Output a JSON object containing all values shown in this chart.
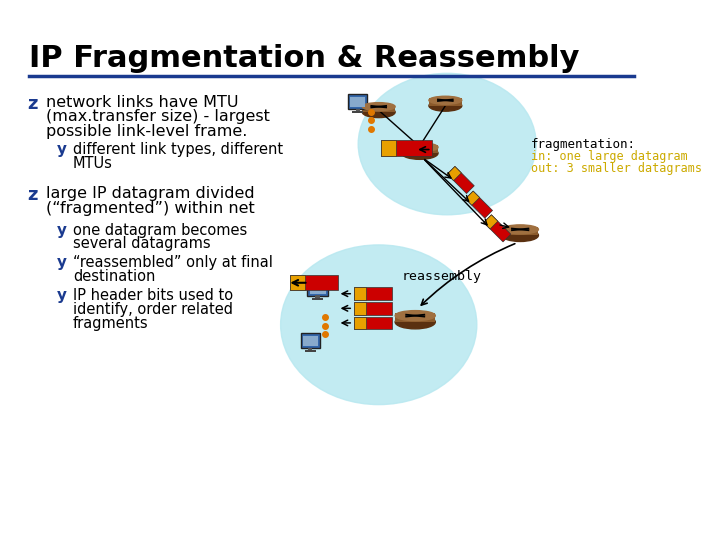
{
  "title": "IP Fragmentation & Reassembly",
  "title_fontsize": 22,
  "title_color": "#000000",
  "underline_color": "#1a3a8f",
  "bg_color": "#ffffff",
  "bullet_color": "#1a3a8f",
  "text_color": "#000000",
  "bullet1_line1": "network links have MTU",
  "bullet1_line2": "(max.transfer size) - largest",
  "bullet1_line3": "possible link-level frame.",
  "sub1_line1": "different link types, different",
  "sub1_line2": "MTUs",
  "bullet2_line1": "large IP datagram divided",
  "bullet2_line2": "(“fragmented”) within net",
  "sub2a_line1": "one datagram becomes",
  "sub2a_line2": "several datagrams",
  "sub2b_line1": "“reassembled” only at final",
  "sub2b_line2": "destination",
  "sub2c_line1": "IP header bits used to",
  "sub2c_line2": "identify, order related",
  "sub2c_line3": "fragments",
  "frag_label": "fragmentation:",
  "frag_in": "in: one large datagram",
  "frag_out": "out: 3 smaller datagrams",
  "reassembly_label": "reassembly",
  "cyan_bg": "#b8e8f0",
  "router_brown": "#8B5A2B",
  "router_light": "#A07040",
  "red_color": "#cc0000",
  "yellow_color": "#e8a000",
  "orange_dot": "#e07800",
  "frag_text_color": "#000000",
  "frag_highlight": "#ccaa00"
}
